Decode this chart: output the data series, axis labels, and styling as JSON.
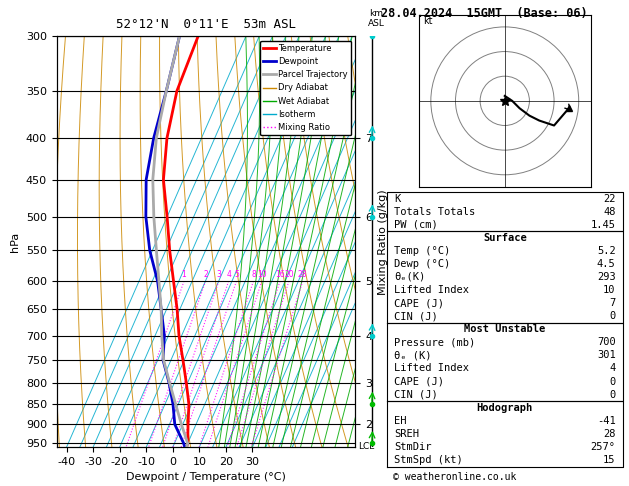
{
  "title_left": "52°12'N  0°11'E  53m ASL",
  "title_right": "28.04.2024  15GMT  (Base: 06)",
  "xlabel": "Dewpoint / Temperature (°C)",
  "ylabel_left": "hPa",
  "background_color": "#ffffff",
  "temp_color": "#ff0000",
  "dewp_color": "#0000cc",
  "parcel_color": "#aaaaaa",
  "dry_adiabat_color": "#cc8800",
  "wet_adiabat_color": "#00aa00",
  "isotherm_color": "#00aacc",
  "mixing_color": "#ff00ff",
  "pressure_levels": [
    300,
    350,
    400,
    450,
    500,
    550,
    600,
    650,
    700,
    750,
    800,
    850,
    900,
    950
  ],
  "temp_profile_p": [
    960,
    950,
    900,
    850,
    800,
    750,
    700,
    650,
    600,
    550,
    500,
    450,
    400,
    350,
    300
  ],
  "temp_profile_t": [
    5.2,
    5.0,
    2.0,
    -1.0,
    -5.5,
    -10.5,
    -16.0,
    -21.0,
    -27.0,
    -33.5,
    -40.0,
    -47.5,
    -53.0,
    -57.0,
    -58.0
  ],
  "dewp_profile_p": [
    960,
    950,
    900,
    850,
    800,
    750,
    700,
    650,
    600,
    550,
    500,
    450,
    400,
    350,
    300
  ],
  "dewp_profile_t": [
    4.5,
    3.5,
    -3.0,
    -7.0,
    -12.0,
    -18.0,
    -21.5,
    -27.0,
    -33.0,
    -41.0,
    -48.0,
    -54.0,
    -58.0,
    -61.0,
    -65.0
  ],
  "parcel_profile_p": [
    960,
    950,
    900,
    850,
    800,
    750,
    700,
    650,
    600,
    550,
    500,
    450,
    400,
    350,
    300
  ],
  "parcel_profile_t": [
    5.2,
    5.0,
    -0.5,
    -6.0,
    -11.8,
    -17.8,
    -22.5,
    -27.0,
    -32.5,
    -38.5,
    -45.0,
    -51.5,
    -57.0,
    -61.0,
    -65.0
  ],
  "mixing_ratios": [
    1,
    2,
    3,
    4,
    5,
    8,
    10,
    16,
    20,
    28
  ],
  "skew_factor": 0.9,
  "t_min": -40,
  "t_max": 35,
  "p_min": 300,
  "p_max": 960,
  "lcl_pressure": 958,
  "km_p_labels": [
    400,
    500,
    600,
    700,
    800,
    900
  ],
  "km_labels": [
    "7",
    "6",
    "5",
    "4",
    "3",
    "2"
  ],
  "stats": {
    "K": 22,
    "Totals_Totals": 48,
    "PW_cm": 1.45,
    "Surface_Temp": 5.2,
    "Surface_Dewp": 4.5,
    "Surface_theta_e": 293,
    "Surface_LI": 10,
    "Surface_CAPE": 7,
    "Surface_CIN": 0,
    "MU_Pressure": 700,
    "MU_theta_e": 301,
    "MU_LI": 4,
    "MU_CAPE": 0,
    "MU_CIN": 0,
    "Hodo_EH": -41,
    "Hodo_SREH": 28,
    "Hodo_StmDir": 257,
    "Hodo_StmSpd": 15
  },
  "copyright": "© weatheronline.co.uk"
}
